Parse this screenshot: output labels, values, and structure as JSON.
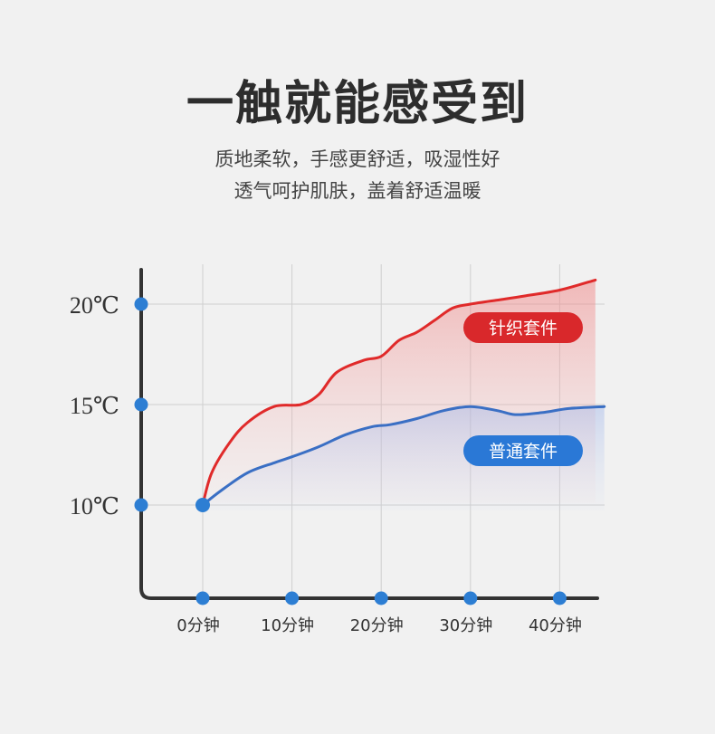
{
  "header": {
    "title": "一触就能感受到",
    "subtitle_line1": "质地柔软，手感更舒适，吸湿性好",
    "subtitle_line2": "透气呵护肌肤，盖着舒适温暖"
  },
  "chart_data": {
    "type": "line",
    "x": [
      0,
      10,
      20,
      30,
      40
    ],
    "x_tick_labels": [
      "0分钟",
      "10分钟",
      "20分钟",
      "30分钟",
      "40分钟"
    ],
    "y_ticks": [
      10,
      15,
      20
    ],
    "y_tick_labels": [
      "10℃",
      "15℃",
      "20℃"
    ],
    "series": [
      {
        "name": "针织套件",
        "color": "#e02a2a",
        "label_bg": "#d9282b",
        "points": [
          [
            0,
            10
          ],
          [
            1,
            11.6
          ],
          [
            3,
            13.1
          ],
          [
            5,
            14.1
          ],
          [
            8,
            14.9
          ],
          [
            11,
            15.0
          ],
          [
            13,
            15.5
          ],
          [
            15,
            16.6
          ],
          [
            18,
            17.2
          ],
          [
            20,
            17.4
          ],
          [
            22,
            18.2
          ],
          [
            24,
            18.6
          ],
          [
            26,
            19.2
          ],
          [
            28,
            19.8
          ],
          [
            30,
            20.0
          ],
          [
            33,
            20.2
          ],
          [
            36,
            20.4
          ],
          [
            40,
            20.7
          ],
          [
            44,
            21.2
          ]
        ]
      },
      {
        "name": "普通套件",
        "color": "#3a6fc4",
        "label_bg": "#2a78d6",
        "points": [
          [
            0,
            10
          ],
          [
            2,
            10.7
          ],
          [
            5,
            11.6
          ],
          [
            8,
            12.1
          ],
          [
            10,
            12.4
          ],
          [
            13,
            12.9
          ],
          [
            16,
            13.5
          ],
          [
            19,
            13.9
          ],
          [
            21,
            14.0
          ],
          [
            24,
            14.3
          ],
          [
            27,
            14.7
          ],
          [
            30,
            14.9
          ],
          [
            33,
            14.7
          ],
          [
            35,
            14.5
          ],
          [
            38,
            14.6
          ],
          [
            41,
            14.8
          ],
          [
            45,
            14.9
          ]
        ]
      }
    ],
    "grid": true,
    "accent_point_color": "#2d7ed3"
  }
}
